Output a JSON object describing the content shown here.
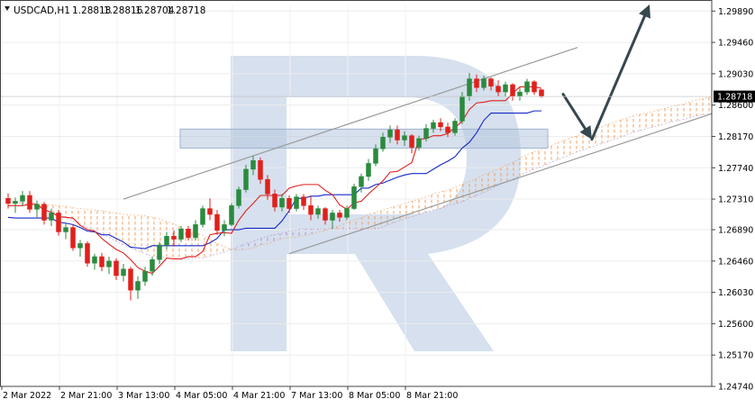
{
  "header": {
    "symbol_timeframe": "USDCAD,H1",
    "open": "1.28813",
    "high": "1.28816",
    "low": "1.28704",
    "close": "1.28718"
  },
  "chart_data": {
    "type": "candlestick",
    "symbol": "USDCAD",
    "timeframe": "H1",
    "ylim": [
      1.2474,
      1.2998
    ],
    "y_ticks": [
      "1.29890",
      "1.29460",
      "1.29030",
      "1.28600",
      "1.28170",
      "1.27740",
      "1.27310",
      "1.26890",
      "1.26460",
      "1.26030",
      "1.25600",
      "1.25170",
      "1.24740"
    ],
    "current_price": "1.28718",
    "x_ticks": [
      "2 Mar 2022",
      "2 Mar 21:00",
      "3 Mar 13:00",
      "4 Mar 05:00",
      "4 Mar 21:00",
      "7 Mar 13:00",
      "8 Mar 05:00",
      "8 Mar 21:00"
    ],
    "grid": true,
    "colors": {
      "bull": "#2b8a3e",
      "bear": "#e0201c",
      "tenkan": "#e0201c",
      "kijun": "#1428c8",
      "cloud_orange": "#f0a060",
      "cloud_purple": "#b090d0",
      "channel": "#9a9a9a",
      "arrow": "#37474f",
      "zone": "#b7c7de",
      "watermark": "#d6e0ee"
    },
    "candles": [
      [
        1.2732,
        1.2739,
        1.2718,
        1.2725
      ],
      [
        1.2725,
        1.2733,
        1.2712,
        1.2728
      ],
      [
        1.2728,
        1.2742,
        1.2722,
        1.2736
      ],
      [
        1.2736,
        1.2742,
        1.2712,
        1.2717
      ],
      [
        1.2717,
        1.2729,
        1.2706,
        1.2724
      ],
      [
        1.2724,
        1.2727,
        1.2696,
        1.2702
      ],
      [
        1.2702,
        1.2718,
        1.2694,
        1.2712
      ],
      [
        1.2712,
        1.2716,
        1.2681,
        1.2686
      ],
      [
        1.2686,
        1.2698,
        1.2676,
        1.2692
      ],
      [
        1.2692,
        1.2696,
        1.266,
        1.2664
      ],
      [
        1.2664,
        1.2675,
        1.2652,
        1.267
      ],
      [
        1.267,
        1.2673,
        1.2638,
        1.2643
      ],
      [
        1.2643,
        1.2656,
        1.2634,
        1.2652
      ],
      [
        1.2652,
        1.2657,
        1.2632,
        1.2638
      ],
      [
        1.2638,
        1.2652,
        1.2628,
        1.2646
      ],
      [
        1.2646,
        1.265,
        1.262,
        1.2626
      ],
      [
        1.2626,
        1.2642,
        1.2618,
        1.2635
      ],
      [
        1.2635,
        1.2638,
        1.2592,
        1.2606
      ],
      [
        1.2606,
        1.2625,
        1.2594,
        1.2618
      ],
      [
        1.2618,
        1.2638,
        1.2612,
        1.2632
      ],
      [
        1.2632,
        1.2652,
        1.2626,
        1.2648
      ],
      [
        1.2648,
        1.2672,
        1.2642,
        1.2668
      ],
      [
        1.2668,
        1.2686,
        1.2662,
        1.268
      ],
      [
        1.268,
        1.2688,
        1.2666,
        1.2676
      ],
      [
        1.2676,
        1.2694,
        1.2672,
        1.269
      ],
      [
        1.269,
        1.2694,
        1.2674,
        1.2678
      ],
      [
        1.2678,
        1.2702,
        1.2674,
        1.2696
      ],
      [
        1.2696,
        1.2722,
        1.2692,
        1.2718
      ],
      [
        1.2718,
        1.2732,
        1.2702,
        1.271
      ],
      [
        1.271,
        1.2716,
        1.2682,
        1.2688
      ],
      [
        1.2688,
        1.2702,
        1.268,
        1.2696
      ],
      [
        1.2696,
        1.2725,
        1.2694,
        1.2722
      ],
      [
        1.2722,
        1.2748,
        1.2718,
        1.2744
      ],
      [
        1.2744,
        1.2778,
        1.274,
        1.2772
      ],
      [
        1.2772,
        1.279,
        1.2764,
        1.2784
      ],
      [
        1.2784,
        1.2788,
        1.2752,
        1.2758
      ],
      [
        1.2758,
        1.2764,
        1.273,
        1.2738
      ],
      [
        1.2738,
        1.2744,
        1.2714,
        1.272
      ],
      [
        1.272,
        1.2738,
        1.2714,
        1.2732
      ],
      [
        1.2732,
        1.2736,
        1.2712,
        1.2718
      ],
      [
        1.2718,
        1.2738,
        1.2714,
        1.2734
      ],
      [
        1.2734,
        1.2738,
        1.2716,
        1.2722
      ],
      [
        1.2722,
        1.2736,
        1.2702,
        1.271
      ],
      [
        1.271,
        1.2722,
        1.2704,
        1.2718
      ],
      [
        1.2718,
        1.272,
        1.2696,
        1.2702
      ],
      [
        1.2702,
        1.2716,
        1.269,
        1.2712
      ],
      [
        1.2712,
        1.2716,
        1.27,
        1.2706
      ],
      [
        1.2706,
        1.2722,
        1.2702,
        1.2718
      ],
      [
        1.2718,
        1.2752,
        1.2716,
        1.2748
      ],
      [
        1.2748,
        1.2766,
        1.274,
        1.2762
      ],
      [
        1.2762,
        1.2786,
        1.2756,
        1.278
      ],
      [
        1.278,
        1.2806,
        1.2776,
        1.28
      ],
      [
        1.28,
        1.2822,
        1.2796,
        1.2816
      ],
      [
        1.2816,
        1.2832,
        1.2808,
        1.2826
      ],
      [
        1.2826,
        1.2832,
        1.2806,
        1.2812
      ],
      [
        1.2812,
        1.2824,
        1.2804,
        1.2818
      ],
      [
        1.2818,
        1.282,
        1.2794,
        1.2802
      ],
      [
        1.2802,
        1.2818,
        1.2798,
        1.2814
      ],
      [
        1.2814,
        1.2834,
        1.281,
        1.2828
      ],
      [
        1.2828,
        1.284,
        1.2822,
        1.2836
      ],
      [
        1.2836,
        1.2842,
        1.2824,
        1.283
      ],
      [
        1.283,
        1.2836,
        1.2816,
        1.2822
      ],
      [
        1.2822,
        1.2842,
        1.2818,
        1.2838
      ],
      [
        1.2838,
        1.2878,
        1.2834,
        1.2872
      ],
      [
        1.2872,
        1.2904,
        1.2866,
        1.2896
      ],
      [
        1.2896,
        1.2902,
        1.2878,
        1.2884
      ],
      [
        1.2884,
        1.29,
        1.288,
        1.2896
      ],
      [
        1.2896,
        1.2898,
        1.288,
        1.2886
      ],
      [
        1.2886,
        1.2894,
        1.2872,
        1.2878
      ],
      [
        1.2878,
        1.2892,
        1.2872,
        1.2888
      ],
      [
        1.2888,
        1.289,
        1.2866,
        1.2872
      ],
      [
        1.2872,
        1.2884,
        1.2866,
        1.2878
      ],
      [
        1.2878,
        1.2896,
        1.2874,
        1.2892
      ],
      [
        1.2892,
        1.2894,
        1.2874,
        1.2878
      ],
      [
        1.2881,
        1.2882,
        1.287,
        1.2872
      ]
    ],
    "tenkan": [
      1.2722,
      1.2722,
      1.2722,
      1.2724,
      1.2724,
      1.2716,
      1.2713,
      1.2707,
      1.2706,
      1.2705,
      1.2695,
      1.2689,
      1.2687,
      1.2677,
      1.2669,
      1.2662,
      1.2657,
      1.2648,
      1.2637,
      1.2632,
      1.2629,
      1.2639,
      1.265,
      1.2649,
      1.2649,
      1.2652,
      1.2652,
      1.2659,
      1.2682,
      1.2684,
      1.2685,
      1.2684,
      1.2702,
      1.2715,
      1.2725,
      1.2736,
      1.2736,
      1.2736,
      1.2736,
      1.2746,
      1.2749,
      1.2751,
      1.2751,
      1.2751,
      1.2743,
      1.2737,
      1.2723,
      1.2717,
      1.2726,
      1.2728,
      1.2738,
      1.2747,
      1.2756,
      1.2768,
      1.2769,
      1.2775,
      1.2781,
      1.2813,
      1.2814,
      1.2818,
      1.2818,
      1.2821,
      1.2829,
      1.2838,
      1.2854,
      1.2863,
      1.2864,
      1.2866,
      1.2866,
      1.2866,
      1.2876,
      1.2885,
      1.2885,
      1.2885,
      1.2883
    ],
    "kijun": [
      1.2706,
      1.2705,
      1.2705,
      1.2705,
      1.2705,
      1.2705,
      1.2705,
      1.2699,
      1.2698,
      1.2696,
      1.2692,
      1.2687,
      1.2686,
      1.2682,
      1.2682,
      1.2677,
      1.2672,
      1.2665,
      1.2664,
      1.2663,
      1.2667,
      1.2667,
      1.2667,
      1.2667,
      1.2667,
      1.2667,
      1.2667,
      1.2667,
      1.2671,
      1.2677,
      1.2689,
      1.2689,
      1.2689,
      1.2691,
      1.2691,
      1.2691,
      1.2691,
      1.2691,
      1.2701,
      1.2715,
      1.2732,
      1.2732,
      1.2735,
      1.2735,
      1.2737,
      1.2737,
      1.2737,
      1.2737,
      1.2737,
      1.2746,
      1.2746,
      1.2751,
      1.2753,
      1.2757,
      1.2761,
      1.2764,
      1.2766,
      1.2766,
      1.2766,
      1.2772,
      1.2778,
      1.2783,
      1.2789,
      1.2801,
      1.2809,
      1.2822,
      1.2839,
      1.2849,
      1.2849,
      1.2849,
      1.2849,
      1.2849,
      1.2849,
      1.2852,
      1.2852
    ],
    "span_a": [
      1.2726,
      1.2726,
      1.2725,
      1.2725,
      1.2724,
      1.2723,
      1.2723,
      1.2722,
      1.2721,
      1.2719,
      1.2718,
      1.2717,
      1.2716,
      1.2715,
      1.2713,
      1.2712,
      1.271,
      1.2709,
      1.2709,
      1.2708,
      1.2706,
      1.2704,
      1.27,
      1.2697,
      1.2692,
      1.2688,
      1.2685,
      1.2681,
      1.2676,
      1.267,
      1.2666,
      1.2662,
      1.2661,
      1.2662,
      1.2664,
      1.2668,
      1.267,
      1.2674,
      1.2677,
      1.2678,
      1.2679,
      1.2681,
      1.2683,
      1.2686,
      1.2688,
      1.2692,
      1.2694,
      1.2699,
      1.2702,
      1.2705,
      1.271,
      1.2713,
      1.2716,
      1.2719,
      1.2722,
      1.2725,
      1.2728,
      1.2731,
      1.2734,
      1.2738,
      1.2741,
      1.2743,
      1.2747,
      1.2751,
      1.2755,
      1.2759,
      1.2764,
      1.2768,
      1.2772,
      1.2777,
      1.2781,
      1.2787,
      1.2792,
      1.2796,
      1.2799,
      1.2803,
      1.2807,
      1.2811,
      1.2815,
      1.2818,
      1.2822,
      1.2825,
      1.2829,
      1.2833,
      1.2836,
      1.284,
      1.2843,
      1.2846,
      1.2848,
      1.285,
      1.2853,
      1.2855,
      1.2858,
      1.286,
      1.2862,
      1.2866,
      1.2868,
      1.287,
      1.2872
    ],
    "span_b": [
      1.2729,
      1.2728,
      1.2726,
      1.2724,
      1.272,
      1.2717,
      1.2714,
      1.271,
      1.2706,
      1.2701,
      1.2697,
      1.2692,
      1.2688,
      1.2683,
      1.2678,
      1.2673,
      1.2668,
      1.2664,
      1.266,
      1.2656,
      1.2653,
      1.2651,
      1.265,
      1.2649,
      1.2648,
      1.2649,
      1.265,
      1.265,
      1.2653,
      1.2656,
      1.2658,
      1.2662,
      1.2666,
      1.267,
      1.2673,
      1.2677,
      1.268,
      1.2682,
      1.2684,
      1.2687,
      1.2689,
      1.269,
      1.269,
      1.269,
      1.269,
      1.269,
      1.269,
      1.269,
      1.269,
      1.269,
      1.269,
      1.269,
      1.2693,
      1.2697,
      1.27,
      1.2704,
      1.2707,
      1.271,
      1.2713,
      1.2716,
      1.2718,
      1.2722,
      1.2724,
      1.2727,
      1.2732,
      1.2736,
      1.274,
      1.2745,
      1.275,
      1.2754,
      1.2758,
      1.2763,
      1.2768,
      1.2772,
      1.2776,
      1.278,
      1.2784,
      1.2788,
      1.2792,
      1.2796,
      1.2799,
      1.2803,
      1.2806,
      1.2809,
      1.2813,
      1.2816,
      1.282,
      1.2823,
      1.2826,
      1.2829,
      1.2831,
      1.2834,
      1.2837,
      1.2839,
      1.2841,
      1.2844,
      1.2846,
      1.2848,
      1.285
    ],
    "channel_upper": [
      [
        16,
        1.2731
      ],
      [
        79,
        1.2939
      ]
    ],
    "channel_lower": [
      [
        39,
        1.2656
      ],
      [
        104,
        1.2869
      ]
    ],
    "resistance_zone": [
      1.2801,
      1.2827
    ],
    "forecast": [
      [
        77,
        1.2875
      ],
      [
        81,
        1.2813
      ],
      [
        89,
        1.2998
      ]
    ]
  }
}
